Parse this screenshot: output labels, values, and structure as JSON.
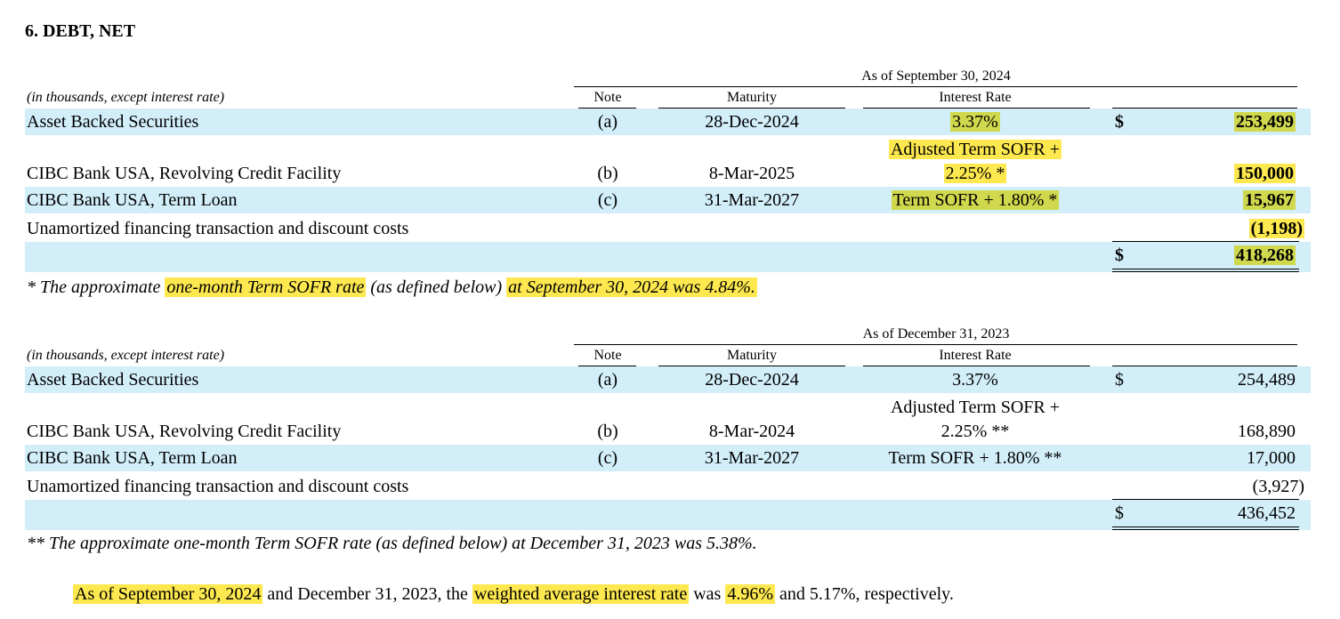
{
  "heading": "6. DEBT, NET",
  "tables": [
    {
      "period": "As of September 30, 2024",
      "units": "(in thousands, except interest rate)",
      "columns": [
        "Note",
        "Maturity",
        "Interest Rate"
      ],
      "rows": [
        {
          "label": "Asset Backed Securities",
          "note": "(a)",
          "maturity": "28-Dec-2024",
          "rate": [
            "3.37%"
          ],
          "currency": "$",
          "amount": "253,499"
        },
        {
          "label": "CIBC Bank USA, Revolving Credit Facility",
          "note": "(b)",
          "maturity": "8-Mar-2025",
          "rate": [
            "Adjusted Term SOFR +",
            "2.25% *"
          ],
          "amount": "150,000"
        },
        {
          "label": "CIBC Bank USA, Term Loan",
          "note": "(c)",
          "maturity": "31-Mar-2027",
          "rate": [
            "Term SOFR + 1.80% *"
          ],
          "amount": "15,967"
        },
        {
          "label": "Unamortized financing transaction and discount costs",
          "amount": "(1,198)"
        }
      ],
      "total": {
        "currency": "$",
        "amount": "418,268"
      },
      "footnote": [
        "* The approximate ",
        "one-month Term SOFR rate",
        " (as defined below) ",
        "at September 30, 2024 was 4.84%."
      ]
    },
    {
      "period": "As of December 31, 2023",
      "units": "(in thousands, except interest rate)",
      "columns": [
        "Note",
        "Maturity",
        "Interest Rate"
      ],
      "rows": [
        {
          "label": "Asset Backed Securities",
          "note": "(a)",
          "maturity": "28-Dec-2024",
          "rate": [
            "3.37%"
          ],
          "currency": "$",
          "amount": "254,489"
        },
        {
          "label": "CIBC Bank USA, Revolving Credit Facility",
          "note": "(b)",
          "maturity": "8-Mar-2024",
          "rate": [
            "Adjusted Term SOFR +",
            "2.25% **"
          ],
          "amount": "168,890"
        },
        {
          "label": "CIBC Bank USA, Term Loan",
          "note": "(c)",
          "maturity": "31-Mar-2027",
          "rate": [
            "Term SOFR + 1.80% **"
          ],
          "amount": "17,000"
        },
        {
          "label": "Unamortized financing transaction and discount costs",
          "amount": "(3,927)"
        }
      ],
      "total": {
        "currency": "$",
        "amount": "436,452"
      },
      "footnote": [
        "** The approximate one-month Term SOFR rate (as defined below) at December 31, 2023 was 5.38%."
      ]
    }
  ],
  "paragraph": [
    "As of September 30, 2024",
    " and December 31, 2023, the ",
    "weighted average interest rate",
    " was ",
    "4.96%",
    " and 5.17%, respectively."
  ]
}
